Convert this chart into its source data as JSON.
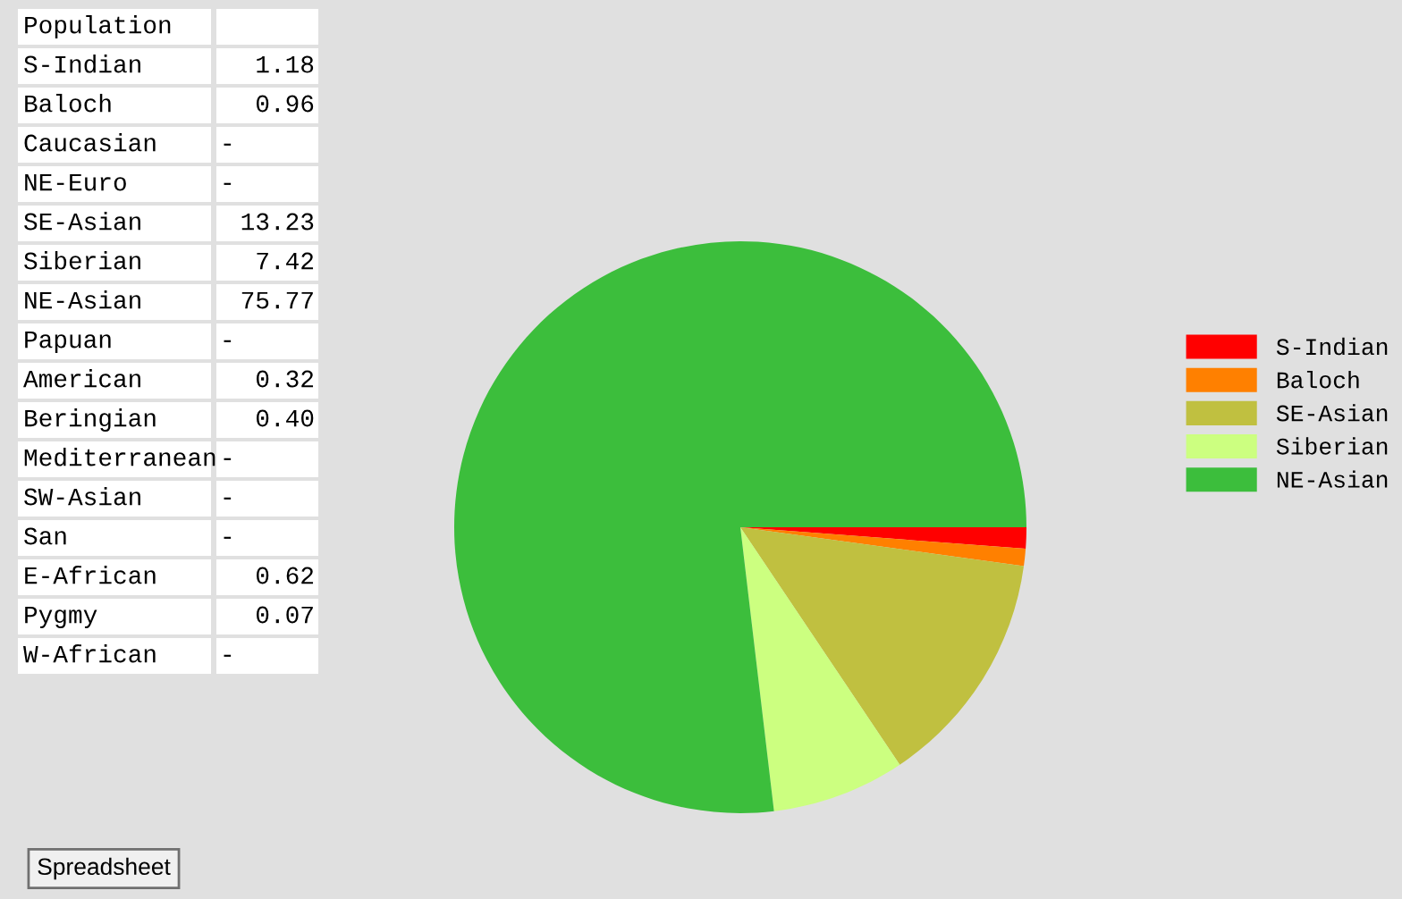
{
  "chart_data": [
    {
      "type": "other",
      "title": "Population",
      "categories": [
        "S-Indian",
        "Baloch",
        "Caucasian",
        "NE-Euro",
        "SE-Asian",
        "Siberian",
        "NE-Asian",
        "Papuan",
        "American",
        "Beringian",
        "Mediterranean",
        "SW-Asian",
        "San",
        "E-African",
        "Pygmy",
        "W-African"
      ],
      "value_labels": [
        "1.18",
        "0.96",
        "-",
        "-",
        "13.23",
        "7.42",
        "75.77",
        "-",
        "0.32",
        "0.40",
        "-",
        "-",
        "-",
        "0.62",
        "0.07",
        "-"
      ],
      "annotations": [
        "Spreadsheet"
      ]
    },
    {
      "type": "pie",
      "categories": [
        "S-Indian",
        "Baloch",
        "SE-Asian",
        "Siberian",
        "NE-Asian"
      ],
      "values": [
        1.18,
        0.96,
        13.23,
        7.42,
        75.77
      ],
      "colors": [
        "#ff0000",
        "#ff8000",
        "#c0c040",
        "#ccff80",
        "#3cbe3c"
      ],
      "legend": "right"
    }
  ]
}
